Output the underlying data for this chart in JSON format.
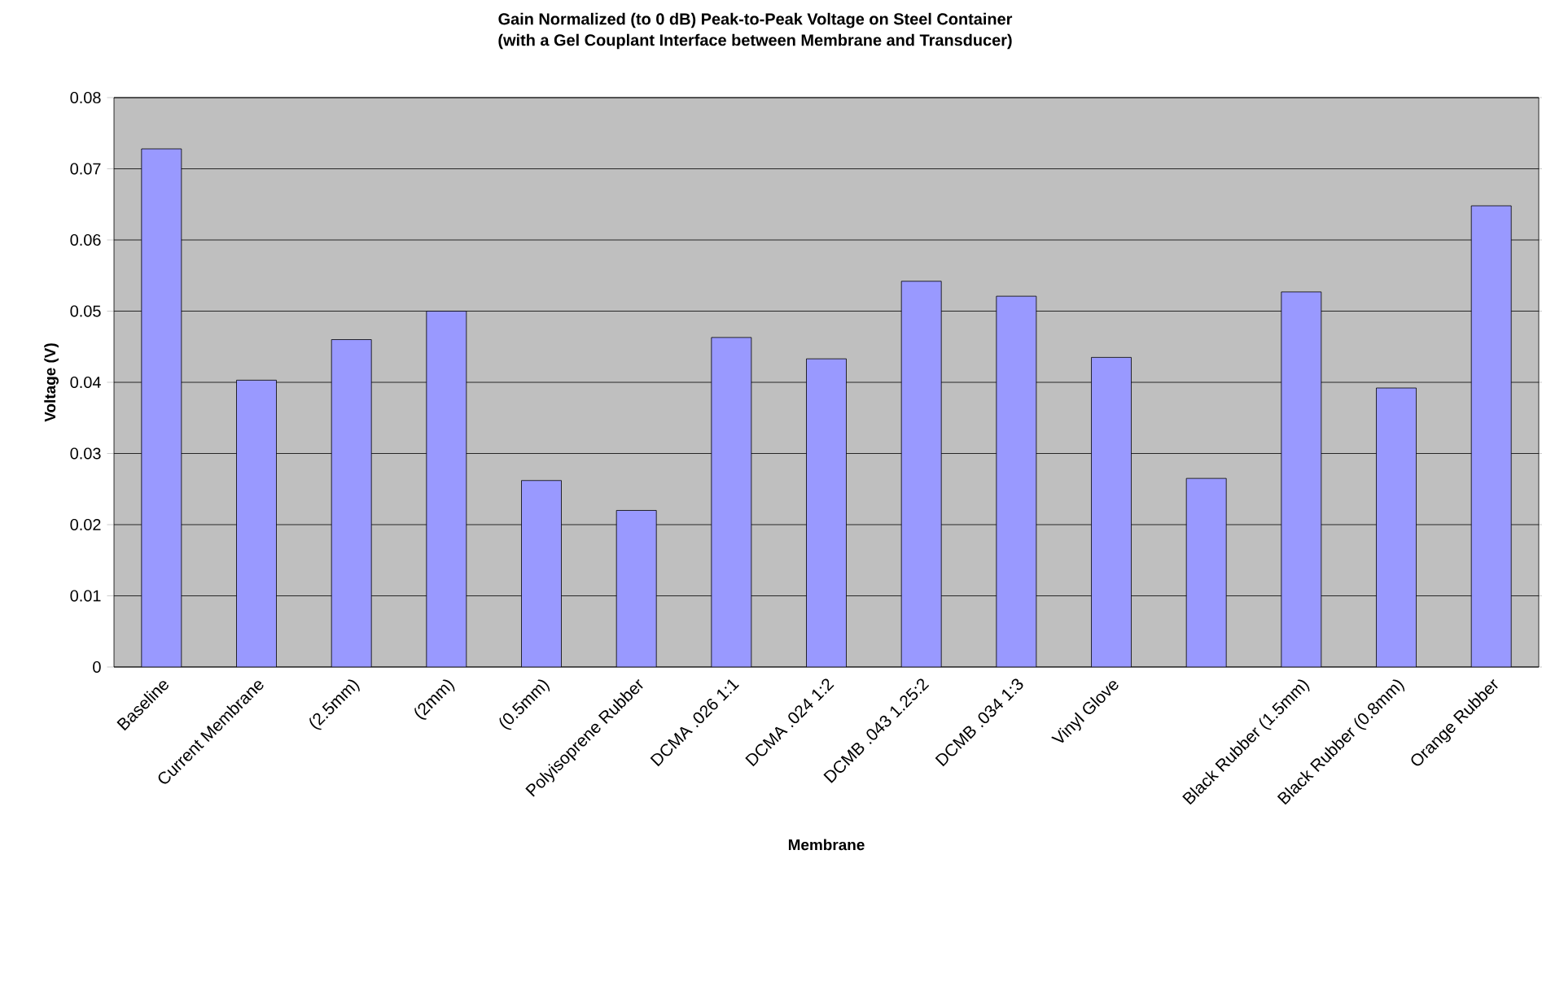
{
  "chart_data": {
    "type": "bar",
    "title": "Gain Normalized (to 0 dB) Peak-to-Peak Voltage on Steel Container",
    "subtitle": "(with a Gel Couplant Interface between Membrane and Transducer)",
    "xlabel": "Membrane",
    "ylabel": "Voltage (V)",
    "categories": [
      "Baseline",
      "Current Membrane",
      "(2.5mm)",
      "(2mm)",
      "(0.5mm)",
      "Polyisoprene Rubber",
      "DCMA .026 1:1",
      "DCMA .024 1:2",
      "DCMB .043 1.25:2",
      "DCMB .034 1:3",
      "Vinyl Glove",
      null,
      "Black Rubber (1.5mm)",
      "Black Rubber (0.8mm)",
      "Orange Rubber"
    ],
    "values": [
      0.0728,
      0.0403,
      0.046,
      0.05,
      0.0262,
      0.022,
      0.0463,
      0.0433,
      0.0542,
      0.0521,
      0.0435,
      0.0265,
      0.0527,
      0.0392,
      0.0648
    ],
    "color": "#9999ff",
    "ylim": [
      0,
      0.08
    ],
    "yticks": [
      0,
      0.01,
      0.02,
      0.03,
      0.04,
      0.05,
      0.06,
      0.07,
      0.08
    ],
    "grid": "y"
  }
}
